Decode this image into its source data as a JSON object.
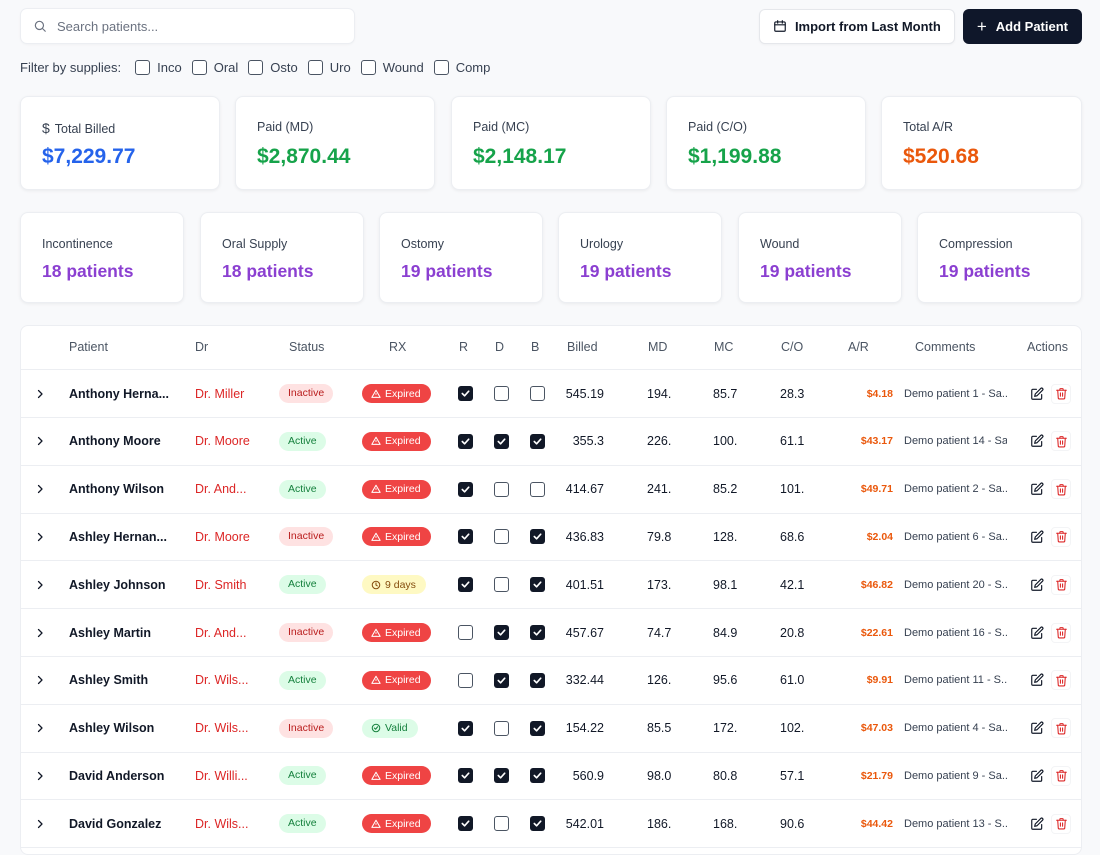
{
  "search": {
    "placeholder": "Search patients..."
  },
  "toolbar": {
    "import_label": "Import from Last Month",
    "add_label": "Add Patient"
  },
  "filters": {
    "label": "Filter by supplies:",
    "options": [
      "Inco",
      "Oral",
      "Osto",
      "Uro",
      "Wound",
      "Comp"
    ]
  },
  "stats": [
    {
      "label": "Total Billed",
      "value": "$7,229.77",
      "color": "#2563eb"
    },
    {
      "label": "Paid (MD)",
      "value": "$2,870.44",
      "color": "#16a34a"
    },
    {
      "label": "Paid (MC)",
      "value": "$2,148.17",
      "color": "#16a34a"
    },
    {
      "label": "Paid (C/O)",
      "value": "$1,199.88",
      "color": "#16a34a"
    },
    {
      "label": "Total A/R",
      "value": "$520.68",
      "color": "#ea580c"
    }
  ],
  "supply_stats": [
    {
      "label": "Incontinence",
      "value": "18 patients"
    },
    {
      "label": "Oral Supply",
      "value": "18 patients"
    },
    {
      "label": "Ostomy",
      "value": "19 patients"
    },
    {
      "label": "Urology",
      "value": "19 patients"
    },
    {
      "label": "Wound",
      "value": "19 patients"
    },
    {
      "label": "Compression",
      "value": "19 patients"
    }
  ],
  "table": {
    "headers": {
      "patient": "Patient",
      "dr": "Dr",
      "status": "Status",
      "rx": "RX",
      "r": "R",
      "d": "D",
      "b": "B",
      "billed": "Billed",
      "md": "MD",
      "mc": "MC",
      "co": "C/O",
      "ar": "A/R",
      "comments": "Comments",
      "actions": "Actions"
    },
    "rows": [
      {
        "name": "Anthony Herna...",
        "dr": "Dr. Miller",
        "status": "Inactive",
        "rx": "Expired",
        "r": true,
        "d": false,
        "b": false,
        "billed": "545.19",
        "md": "194.",
        "mc": "85.7",
        "co": "28.3",
        "ar": "$4.18",
        "comment": "Demo patient 1 - Sa..."
      },
      {
        "name": "Anthony Moore",
        "dr": "Dr. Moore",
        "status": "Active",
        "rx": "Expired",
        "r": true,
        "d": true,
        "b": true,
        "billed": "355.3",
        "md": "226.",
        "mc": "100.",
        "co": "61.1",
        "ar": "$43.17",
        "comment": "Demo patient 14 - Sa..."
      },
      {
        "name": "Anthony Wilson",
        "dr": "Dr. And...",
        "status": "Active",
        "rx": "Expired",
        "r": true,
        "d": false,
        "b": false,
        "billed": "414.67",
        "md": "241.",
        "mc": "85.2",
        "co": "101.",
        "ar": "$49.71",
        "comment": "Demo patient 2 - Sa..."
      },
      {
        "name": "Ashley Hernan...",
        "dr": "Dr. Moore",
        "status": "Inactive",
        "rx": "Expired",
        "r": true,
        "d": false,
        "b": true,
        "billed": "436.83",
        "md": "79.8",
        "mc": "128.",
        "co": "68.6",
        "ar": "$2.04",
        "comment": "Demo patient 6 - Sa..."
      },
      {
        "name": "Ashley Johnson",
        "dr": "Dr. Smith",
        "status": "Active",
        "rx": "9 days",
        "r": true,
        "d": false,
        "b": true,
        "billed": "401.51",
        "md": "173.",
        "mc": "98.1",
        "co": "42.1",
        "ar": "$46.82",
        "comment": "Demo patient 20 - S..."
      },
      {
        "name": "Ashley Martin",
        "dr": "Dr. And...",
        "status": "Inactive",
        "rx": "Expired",
        "r": false,
        "d": true,
        "b": true,
        "billed": "457.67",
        "md": "74.7",
        "mc": "84.9",
        "co": "20.8",
        "ar": "$22.61",
        "comment": "Demo patient 16 - S..."
      },
      {
        "name": "Ashley Smith",
        "dr": "Dr. Wils...",
        "status": "Active",
        "rx": "Expired",
        "r": false,
        "d": true,
        "b": true,
        "billed": "332.44",
        "md": "126.",
        "mc": "95.6",
        "co": "61.0",
        "ar": "$9.91",
        "comment": "Demo patient 11 - S..."
      },
      {
        "name": "Ashley Wilson",
        "dr": "Dr. Wils...",
        "status": "Inactive",
        "rx": "Valid",
        "r": true,
        "d": false,
        "b": true,
        "billed": "154.22",
        "md": "85.5",
        "mc": "172.",
        "co": "102.",
        "ar": "$47.03",
        "comment": "Demo patient 4 - Sa..."
      },
      {
        "name": "David Anderson",
        "dr": "Dr. Willi...",
        "status": "Active",
        "rx": "Expired",
        "r": true,
        "d": true,
        "b": true,
        "billed": "560.9",
        "md": "98.0",
        "mc": "80.8",
        "co": "57.1",
        "ar": "$21.79",
        "comment": "Demo patient 9 - Sa..."
      },
      {
        "name": "David Gonzalez",
        "dr": "Dr. Wils...",
        "status": "Active",
        "rx": "Expired",
        "r": true,
        "d": false,
        "b": true,
        "billed": "542.01",
        "md": "186.",
        "mc": "168.",
        "co": "90.6",
        "ar": "$44.42",
        "comment": "Demo patient 13 - S..."
      }
    ]
  }
}
